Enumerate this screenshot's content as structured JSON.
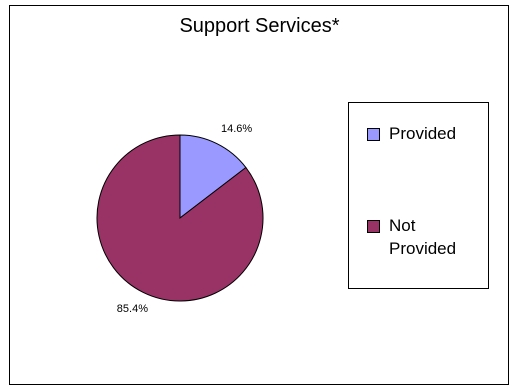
{
  "chart_data": {
    "type": "pie",
    "title": "Support Services*",
    "categories": [
      "Provided",
      "Not Provided"
    ],
    "values": [
      14.6,
      85.4
    ],
    "data_labels": [
      "14.6%",
      "85.4%"
    ],
    "colors": [
      "#9999ff",
      "#993366"
    ],
    "legend_position": "right"
  },
  "legend": {
    "items": [
      {
        "label_lines": [
          "Provided"
        ]
      },
      {
        "label_lines": [
          "Not",
          "Provided"
        ]
      }
    ]
  }
}
